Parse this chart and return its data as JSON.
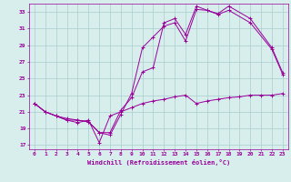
{
  "title": "",
  "xlabel": "Windchill (Refroidissement éolien,°C)",
  "ylabel": "",
  "background_color": "#d7eeed",
  "line_color": "#990099",
  "grid_color": "#aacccc",
  "xlim": [
    -0.5,
    23.5
  ],
  "ylim": [
    16.5,
    34.0
  ],
  "yticks": [
    17,
    19,
    21,
    23,
    25,
    27,
    29,
    31,
    33
  ],
  "xticks": [
    0,
    1,
    2,
    3,
    4,
    5,
    6,
    7,
    8,
    9,
    10,
    11,
    12,
    13,
    14,
    15,
    16,
    17,
    18,
    19,
    20,
    21,
    22,
    23
  ],
  "line1_x": [
    0,
    1,
    2,
    3,
    4,
    5,
    6,
    7,
    8,
    9,
    10,
    11,
    12,
    13,
    14,
    15,
    16,
    17,
    18,
    19,
    20,
    21,
    22,
    23
  ],
  "line1_y": [
    22.0,
    21.0,
    20.5,
    20.0,
    19.7,
    20.0,
    17.3,
    20.5,
    21.0,
    21.5,
    22.0,
    22.3,
    22.5,
    22.8,
    23.0,
    22.0,
    22.3,
    22.5,
    22.7,
    22.8,
    23.0,
    23.0,
    23.0,
    23.2
  ],
  "line2_x": [
    0,
    1,
    2,
    3,
    4,
    5,
    6,
    7,
    8,
    9,
    10,
    11,
    12,
    13,
    14,
    15,
    16,
    17,
    18,
    20,
    22,
    23
  ],
  "line2_y": [
    22.0,
    21.0,
    20.5,
    20.0,
    20.0,
    19.8,
    18.5,
    18.2,
    20.7,
    23.2,
    28.7,
    30.0,
    31.3,
    31.7,
    29.5,
    33.3,
    33.2,
    32.7,
    33.2,
    31.7,
    28.5,
    25.5
  ],
  "line3_x": [
    0,
    1,
    2,
    3,
    4,
    5,
    6,
    7,
    8,
    9,
    10,
    11,
    12,
    13,
    14,
    15,
    16,
    17,
    18,
    20,
    22,
    23
  ],
  "line3_y": [
    22.0,
    21.0,
    20.5,
    20.2,
    20.0,
    19.8,
    18.5,
    18.5,
    21.2,
    22.7,
    25.8,
    26.3,
    31.7,
    32.2,
    30.3,
    33.7,
    33.2,
    32.8,
    33.7,
    32.2,
    28.7,
    25.7
  ]
}
